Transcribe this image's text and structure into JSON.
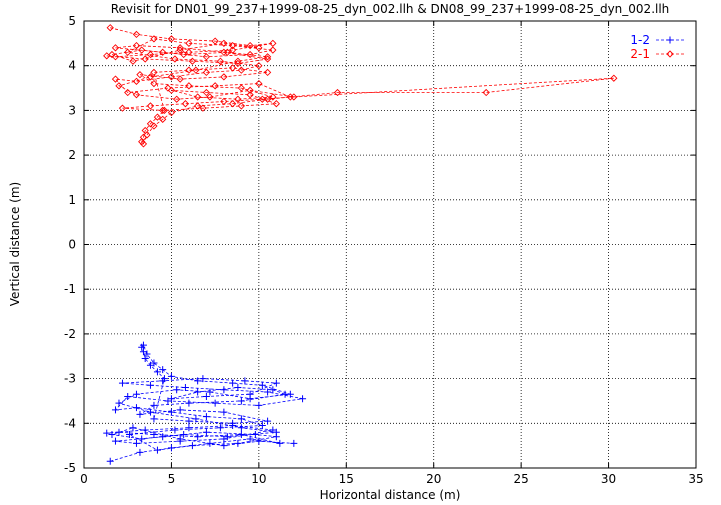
{
  "chart_data": {
    "type": "scatter",
    "title": "Revisit for DN01_99_237+1999-08-25_dyn_002.llh & DN08_99_237+1999-08-25_dyn_002.llh",
    "xlabel": "Horizontal distance (m)",
    "ylabel": "Vertical distance (m)",
    "xlim": [
      0,
      35
    ],
    "ylim": [
      -5,
      5
    ],
    "x_ticks": [
      "0",
      "5",
      "10",
      "15",
      "20",
      "25",
      "30",
      "35"
    ],
    "y_ticks": [
      "-5",
      "-4",
      "-3",
      "-2",
      "-1",
      "0",
      "1",
      "2",
      "3",
      "4",
      "5"
    ],
    "grid": true,
    "legend_position": "top-right",
    "series": [
      {
        "name": "1-2",
        "color": "#0000ff",
        "marker": "plus",
        "line": "dashed",
        "points": [
          [
            1.5,
            -4.85
          ],
          [
            3.2,
            -4.65
          ],
          [
            5.0,
            -4.55
          ],
          [
            7.2,
            -4.45
          ],
          [
            9.5,
            -4.35
          ],
          [
            11.2,
            -4.45
          ],
          [
            9.0,
            -4.25
          ],
          [
            6.5,
            -4.3
          ],
          [
            4.0,
            -4.25
          ],
          [
            2.0,
            -4.2
          ],
          [
            1.3,
            -4.22
          ],
          [
            3.5,
            -4.15
          ],
          [
            6.0,
            -4.1
          ],
          [
            8.5,
            -4.05
          ],
          [
            10.8,
            -4.15
          ],
          [
            8.0,
            -4.35
          ],
          [
            5.5,
            -4.4
          ],
          [
            3.0,
            -4.45
          ],
          [
            1.8,
            -4.4
          ],
          [
            4.5,
            -4.3
          ],
          [
            7.0,
            -4.2
          ],
          [
            9.8,
            -4.25
          ],
          [
            11.0,
            -4.3
          ],
          [
            8.8,
            -4.45
          ],
          [
            6.2,
            -4.5
          ],
          [
            4.2,
            -4.6
          ],
          [
            2.6,
            -4.25
          ],
          [
            5.2,
            -4.15
          ],
          [
            7.8,
            -4.1
          ],
          [
            10.2,
            -4.05
          ],
          [
            9.0,
            -3.9
          ],
          [
            7.0,
            -3.85
          ],
          [
            5.0,
            -3.75
          ],
          [
            3.0,
            -3.65
          ],
          [
            1.8,
            -3.7
          ],
          [
            2.5,
            -3.4
          ],
          [
            4.8,
            -3.5
          ],
          [
            7.5,
            -3.55
          ],
          [
            10.0,
            -3.6
          ],
          [
            12.5,
            -3.45
          ],
          [
            10.5,
            -3.3
          ],
          [
            8.0,
            -3.25
          ],
          [
            5.8,
            -3.2
          ],
          [
            3.8,
            -3.15
          ],
          [
            2.2,
            -3.1
          ],
          [
            4.5,
            -3.05
          ],
          [
            6.8,
            -3.0
          ],
          [
            9.2,
            -3.05
          ],
          [
            11.0,
            -3.1
          ],
          [
            9.5,
            -3.35
          ],
          [
            7.0,
            -3.4
          ],
          [
            5.0,
            -3.45
          ],
          [
            6.5,
            -3.3
          ],
          [
            8.8,
            -3.2
          ],
          [
            10.8,
            -3.25
          ],
          [
            11.5,
            -3.35
          ],
          [
            9.0,
            -3.5
          ],
          [
            6.0,
            -3.55
          ],
          [
            4.0,
            -3.6
          ],
          [
            3.2,
            -3.8
          ],
          [
            5.5,
            -3.7
          ],
          [
            8.0,
            -3.75
          ],
          [
            10.5,
            -3.95
          ],
          [
            8.5,
            -4.0
          ],
          [
            6.0,
            -3.95
          ],
          [
            4.0,
            -3.9
          ],
          [
            4.6,
            -3.0
          ],
          [
            4.2,
            -2.85
          ],
          [
            3.8,
            -2.7
          ],
          [
            3.5,
            -2.55
          ],
          [
            3.4,
            -2.4
          ],
          [
            3.3,
            -2.3
          ],
          [
            3.4,
            -2.25
          ],
          [
            3.6,
            -2.45
          ],
          [
            4.0,
            -2.65
          ],
          [
            4.5,
            -2.8
          ],
          [
            5.0,
            -2.95
          ],
          [
            6.5,
            -3.05
          ],
          [
            8.5,
            -3.1
          ],
          [
            10.2,
            -3.15
          ],
          [
            11.8,
            -3.35
          ],
          [
            9.5,
            -3.45
          ],
          [
            7.2,
            -3.3
          ],
          [
            5.3,
            -3.25
          ],
          [
            3.0,
            -3.35
          ],
          [
            2.0,
            -3.55
          ],
          [
            3.8,
            -3.75
          ],
          [
            6.4,
            -3.9
          ],
          [
            9.0,
            -4.1
          ],
          [
            11.0,
            -4.2
          ],
          [
            8.2,
            -4.3
          ],
          [
            5.7,
            -4.25
          ],
          [
            3.3,
            -4.35
          ],
          [
            1.6,
            -4.25
          ],
          [
            2.8,
            -4.1
          ],
          [
            5.5,
            -4.35
          ],
          [
            8.0,
            -4.5
          ],
          [
            10.0,
            -4.4
          ],
          [
            12.0,
            -4.45
          ]
        ]
      },
      {
        "name": "2-1",
        "color": "#ff0000",
        "marker": "diamond",
        "line": "dashed",
        "points": [
          [
            1.5,
            4.85
          ],
          [
            3.0,
            4.7
          ],
          [
            5.0,
            4.6
          ],
          [
            7.5,
            4.55
          ],
          [
            9.5,
            4.45
          ],
          [
            10.8,
            4.5
          ],
          [
            8.5,
            4.35
          ],
          [
            6.0,
            4.3
          ],
          [
            3.8,
            4.25
          ],
          [
            1.8,
            4.2
          ],
          [
            1.3,
            4.22
          ],
          [
            3.5,
            4.15
          ],
          [
            6.2,
            4.1
          ],
          [
            8.8,
            4.05
          ],
          [
            10.5,
            4.15
          ],
          [
            8.0,
            4.3
          ],
          [
            5.5,
            4.4
          ],
          [
            3.0,
            4.45
          ],
          [
            1.8,
            4.4
          ],
          [
            4.5,
            4.3
          ],
          [
            7.0,
            4.2
          ],
          [
            9.5,
            4.25
          ],
          [
            10.8,
            4.35
          ],
          [
            8.5,
            4.45
          ],
          [
            6.0,
            4.5
          ],
          [
            4.0,
            4.6
          ],
          [
            2.5,
            4.3
          ],
          [
            5.2,
            4.15
          ],
          [
            7.8,
            4.1
          ],
          [
            10.0,
            4.0
          ],
          [
            9.0,
            3.9
          ],
          [
            7.0,
            3.85
          ],
          [
            5.0,
            3.75
          ],
          [
            3.0,
            3.65
          ],
          [
            1.8,
            3.7
          ],
          [
            2.5,
            3.4
          ],
          [
            4.8,
            3.5
          ],
          [
            7.5,
            3.55
          ],
          [
            10.0,
            3.6
          ],
          [
            11.8,
            3.3
          ],
          [
            10.2,
            3.25
          ],
          [
            8.0,
            3.2
          ],
          [
            5.8,
            3.15
          ],
          [
            3.8,
            3.1
          ],
          [
            2.2,
            3.05
          ],
          [
            4.5,
            3.0
          ],
          [
            6.8,
            3.05
          ],
          [
            9.0,
            3.1
          ],
          [
            11.0,
            3.15
          ],
          [
            9.5,
            3.35
          ],
          [
            7.0,
            3.4
          ],
          [
            5.0,
            3.45
          ],
          [
            6.5,
            3.3
          ],
          [
            8.8,
            3.25
          ],
          [
            10.8,
            3.3
          ],
          [
            9.0,
            3.5
          ],
          [
            6.0,
            3.55
          ],
          [
            4.0,
            3.6
          ],
          [
            3.2,
            3.8
          ],
          [
            5.5,
            3.7
          ],
          [
            8.0,
            3.75
          ],
          [
            10.5,
            3.85
          ],
          [
            8.5,
            3.95
          ],
          [
            6.0,
            3.9
          ],
          [
            4.0,
            3.85
          ],
          [
            4.6,
            3.0
          ],
          [
            4.2,
            2.85
          ],
          [
            3.8,
            2.7
          ],
          [
            3.5,
            2.55
          ],
          [
            3.4,
            2.4
          ],
          [
            3.3,
            2.3
          ],
          [
            3.4,
            2.25
          ],
          [
            3.6,
            2.45
          ],
          [
            4.0,
            2.65
          ],
          [
            4.5,
            2.8
          ],
          [
            5.0,
            2.95
          ],
          [
            6.5,
            3.1
          ],
          [
            8.5,
            3.15
          ],
          [
            10.5,
            3.25
          ],
          [
            14.5,
            3.4
          ],
          [
            23.0,
            3.4
          ],
          [
            30.3,
            3.72
          ],
          [
            12.0,
            3.3
          ],
          [
            9.5,
            3.45
          ],
          [
            7.2,
            3.3
          ],
          [
            5.3,
            3.25
          ],
          [
            3.0,
            3.35
          ],
          [
            2.0,
            3.55
          ],
          [
            3.8,
            3.75
          ],
          [
            6.4,
            3.9
          ],
          [
            8.8,
            4.1
          ],
          [
            10.5,
            4.2
          ],
          [
            8.2,
            4.3
          ],
          [
            5.7,
            4.25
          ],
          [
            3.3,
            4.35
          ],
          [
            1.6,
            4.25
          ],
          [
            2.8,
            4.1
          ],
          [
            5.5,
            4.35
          ],
          [
            8.0,
            4.5
          ],
          [
            10.0,
            4.4
          ]
        ]
      }
    ]
  }
}
